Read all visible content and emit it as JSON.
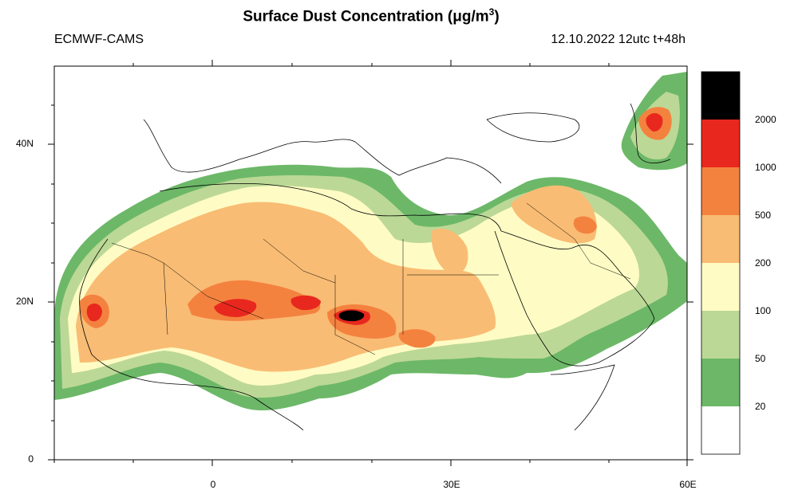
{
  "title": {
    "text": "Surface Dust Concentration (μg/m",
    "sup": "3",
    "tail": ")"
  },
  "source_label": "ECMWF-CAMS",
  "run_label": "12.10.2022 12utc t+48h",
  "lat_labels": [
    "40N",
    "20N",
    "0"
  ],
  "lon_labels": [
    "0",
    "30E",
    "60E"
  ],
  "legend": {
    "levels": [
      "2000",
      "1000",
      "500",
      "200",
      "100",
      "50",
      "20"
    ],
    "colors": [
      "#000000",
      "#e8281e",
      "#f4823f",
      "#f9bc74",
      "#fefcc4",
      "#bcd896",
      "#6cb868",
      "#ffffff"
    ]
  },
  "palette": {
    "light_green": "#bcd896",
    "green": "#6cb868",
    "pale_yellow": "#fefcc4",
    "light_orange": "#f9bc74",
    "orange": "#f4823f",
    "red": "#e8281e",
    "black": "#000000"
  }
}
